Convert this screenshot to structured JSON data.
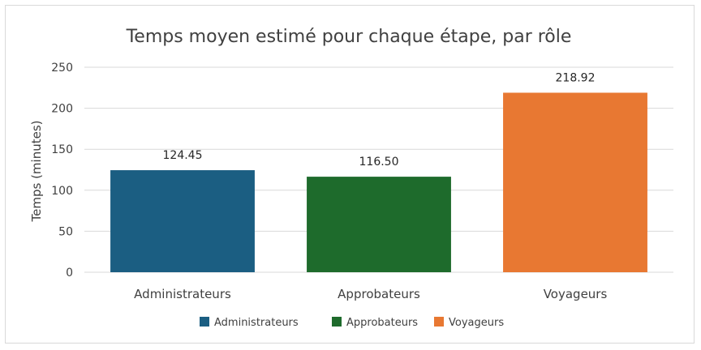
{
  "chart_data": {
    "type": "bar",
    "title": "Temps moyen estimé pour chaque étape, par rôle",
    "xlabel": "",
    "ylabel": "Temps (minutes)",
    "ylim": [
      0,
      250
    ],
    "yticks": [
      0,
      50,
      100,
      150,
      200,
      250
    ],
    "grid": true,
    "legend_position": "bottom",
    "categories": [
      "Administrateurs",
      "Approbateurs",
      "Voyageurs"
    ],
    "values": [
      124.45,
      116.5,
      218.92
    ],
    "value_labels": [
      "124.45",
      "116.50",
      "218.92"
    ],
    "colors": [
      "#1b5e82",
      "#1e6b2c",
      "#e87832"
    ],
    "legend": [
      "Administrateurs",
      "Approbateurs",
      "Voyageurs"
    ]
  }
}
